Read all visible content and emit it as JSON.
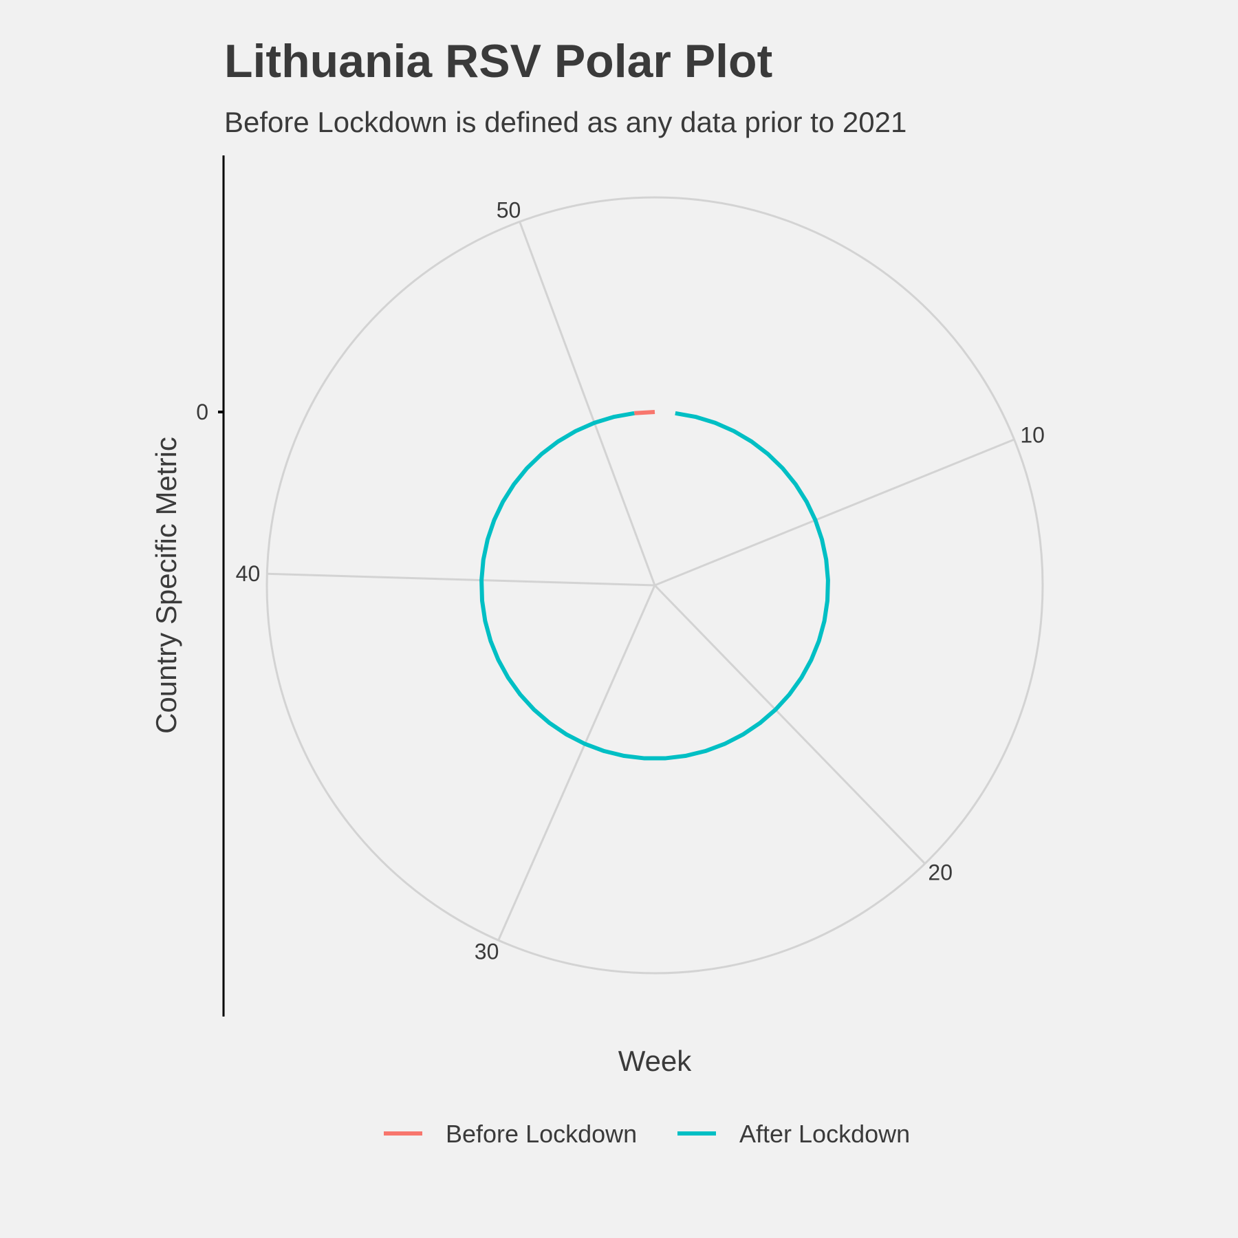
{
  "chart_data": {
    "type": "line",
    "coordinate_system": "polar",
    "title": "Lithuania RSV Polar Plot",
    "subtitle": "Before Lockdown is defined as any data prior to 2021",
    "xlabel": "Week",
    "ylabel": "Country Specific Metric",
    "x_ticks": [
      10,
      20,
      30,
      40,
      50
    ],
    "x_tick_labels": [
      "10",
      "20",
      "30",
      "40",
      "50"
    ],
    "xlim": [
      0,
      53
    ],
    "y_ticks": [
      0
    ],
    "y_tick_labels": [
      "0"
    ],
    "grid": true,
    "legend_position": "bottom",
    "series": [
      {
        "name": "Before Lockdown",
        "color": "#f8766d",
        "x": [
          52,
          53
        ],
        "y": [
          0,
          0
        ]
      },
      {
        "name": "After Lockdown",
        "color": "#00bfc4",
        "x": [
          1,
          2,
          3,
          4,
          5,
          6,
          7,
          8,
          9,
          10,
          11,
          12,
          13,
          14,
          15,
          16,
          17,
          18,
          19,
          20,
          21,
          22,
          23,
          24,
          25,
          26,
          27,
          28,
          29,
          30,
          31,
          32,
          33,
          34,
          35,
          36,
          37,
          38,
          39,
          40,
          41,
          42,
          43,
          44,
          45,
          46,
          47,
          48,
          49,
          50,
          51,
          52
        ],
        "y": [
          0,
          0,
          0,
          0,
          0,
          0,
          0,
          0,
          0,
          0,
          0,
          0,
          0,
          0,
          0,
          0,
          0,
          0,
          0,
          0,
          0,
          0,
          0,
          0,
          0,
          0,
          0,
          0,
          0,
          0,
          0,
          0,
          0,
          0,
          0,
          0,
          0,
          0,
          0,
          0,
          0,
          0,
          0,
          0,
          0,
          0,
          0,
          0,
          0,
          0,
          0,
          0
        ]
      }
    ]
  }
}
